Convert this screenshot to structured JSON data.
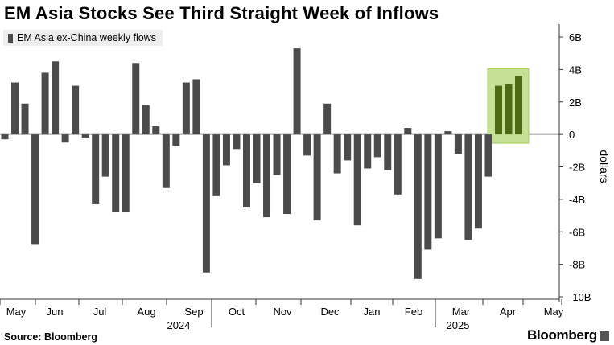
{
  "title": "EM Asia Stocks See Third Straight Week of Inflows",
  "source": "Source: Bloomberg",
  "logo": "Bloomberg",
  "chart_data": {
    "type": "bar",
    "legend": [
      "EM Asia ex-China weekly flows"
    ],
    "ylabel": "dollars",
    "ylim": [
      -10,
      6
    ],
    "yticks": [
      6,
      4,
      2,
      0,
      -2,
      -4,
      -6,
      -8,
      -10
    ],
    "ytick_labels": [
      "6B",
      "4B",
      "2B",
      "0",
      "-2B",
      "-4B",
      "-6B",
      "-8B",
      "-10B"
    ],
    "xtick_labels": [
      "May",
      "Jun",
      "Jul",
      "Aug",
      "Sep",
      "Oct",
      "Nov",
      "Dec",
      "Jan",
      "Feb",
      "Mar",
      "Apr",
      "May"
    ],
    "year_labels": [
      "2024",
      "2025"
    ],
    "unit": "USD billions",
    "bar_color": "#4b4b4b",
    "highlight_color": "#c4e196",
    "highlight_bar_color": "#4e6b14",
    "highlighted_last_n": 3,
    "series": [
      {
        "name": "EM Asia ex-China weekly flows",
        "values": [
          -0.3,
          3.2,
          1.9,
          -6.8,
          3.8,
          4.5,
          -0.5,
          3.0,
          -0.2,
          -4.3,
          -2.6,
          -4.8,
          -4.8,
          4.4,
          1.8,
          0.5,
          -3.3,
          -0.7,
          3.2,
          3.4,
          -8.5,
          -3.8,
          -1.9,
          -0.9,
          -4.5,
          -3.0,
          -5.1,
          -2.5,
          -4.9,
          5.3,
          -1.3,
          -5.3,
          1.9,
          -2.4,
          -1.6,
          -5.6,
          -2.1,
          -1.4,
          -2.2,
          -3.7,
          0.4,
          -8.9,
          -7.1,
          -6.4,
          0.2,
          -1.2,
          -6.5,
          -5.8,
          -2.6,
          3.0,
          3.1,
          3.6
        ]
      }
    ]
  }
}
